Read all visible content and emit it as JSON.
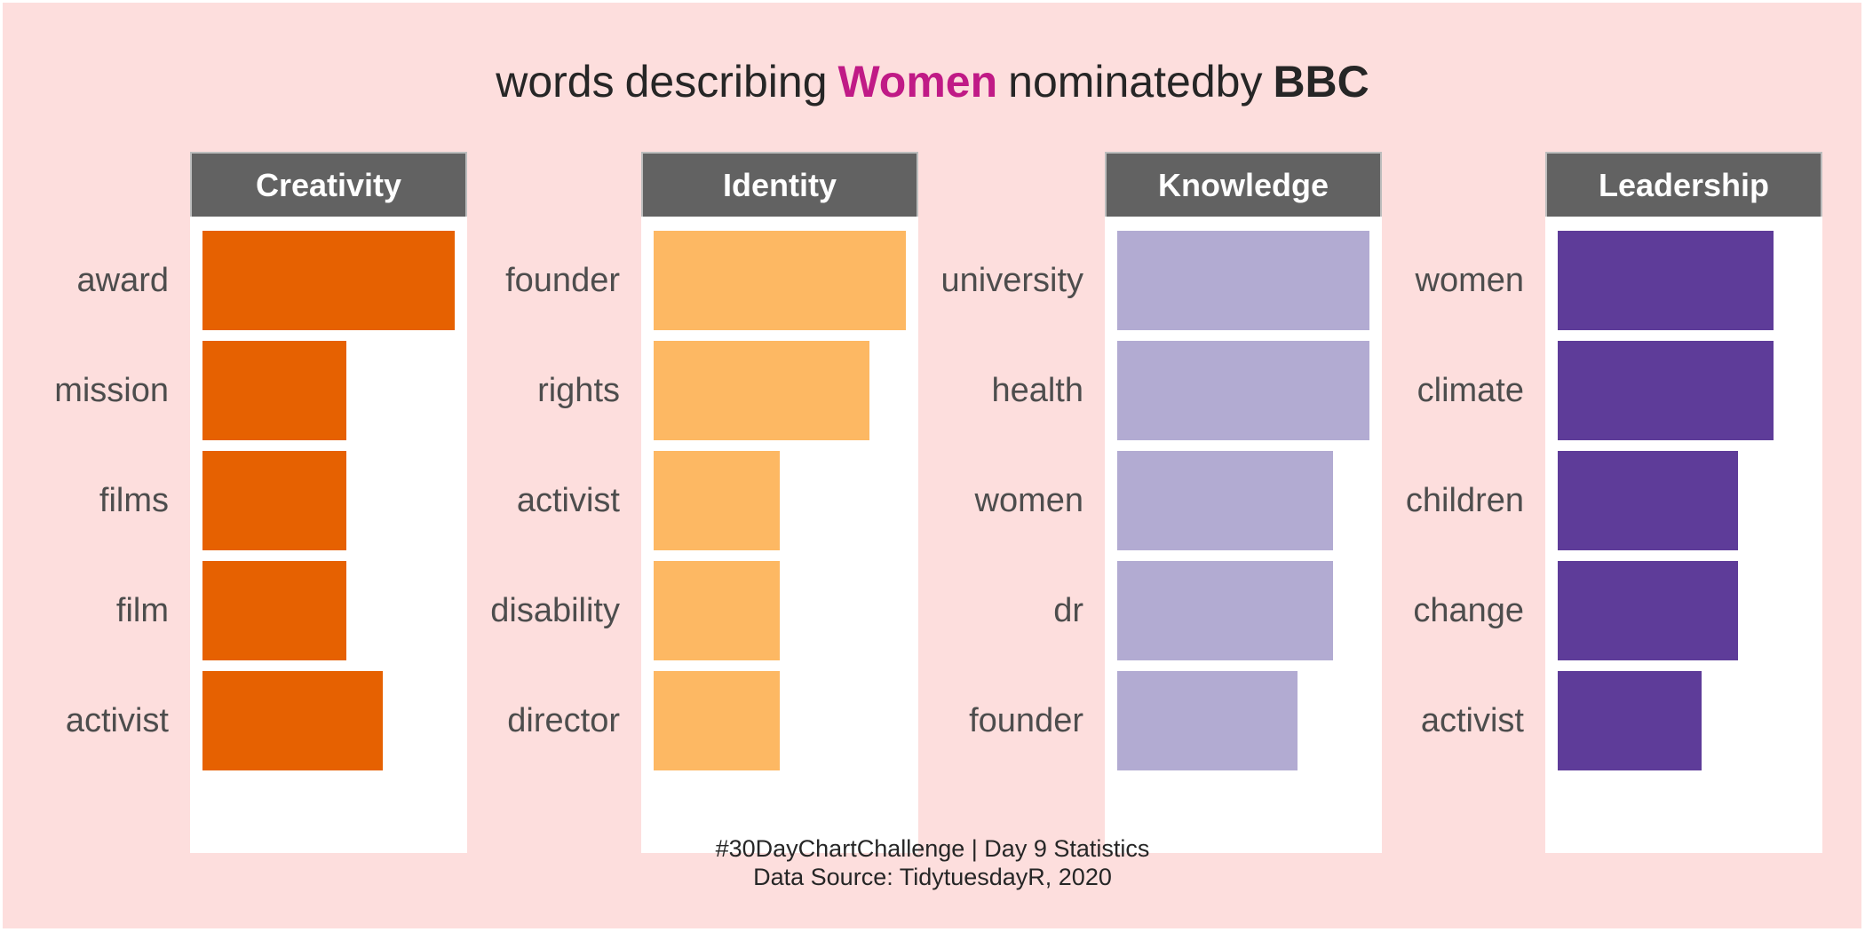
{
  "title": {
    "part1": "words",
    "part2": "describing",
    "highlight": "Women",
    "part3": "nominatedby",
    "bold": "BBC"
  },
  "caption": {
    "line1": "#30DayChartChallenge | Day  9 Statistics",
    "line2": "Data Source: TidytuesdayR,  2020"
  },
  "chart_data": {
    "type": "bar",
    "orientation": "horizontal",
    "facets": [
      {
        "name": "Creativity",
        "color": "#e66101",
        "categories": [
          "award",
          "mission",
          "films",
          "film",
          "activist"
        ],
        "values": [
          7,
          4,
          4,
          4,
          5
        ]
      },
      {
        "name": "Identity",
        "color": "#fdb863",
        "categories": [
          "founder",
          "rights",
          "activist",
          "disability",
          "director"
        ],
        "values": [
          7,
          6,
          3.5,
          3.5,
          3.5
        ]
      },
      {
        "name": "Knowledge",
        "color": "#b2abd2",
        "categories": [
          "university",
          "health",
          "women",
          "dr",
          "founder"
        ],
        "values": [
          7,
          7,
          6,
          6,
          5
        ]
      },
      {
        "name": "Leadership",
        "color": "#5e3c99",
        "categories": [
          "women",
          "climate",
          "children",
          "change",
          "activist"
        ],
        "values": [
          6,
          6,
          5,
          5,
          4
        ]
      }
    ],
    "xlim": [
      0,
      7
    ],
    "grid": false,
    "legend": "none"
  }
}
